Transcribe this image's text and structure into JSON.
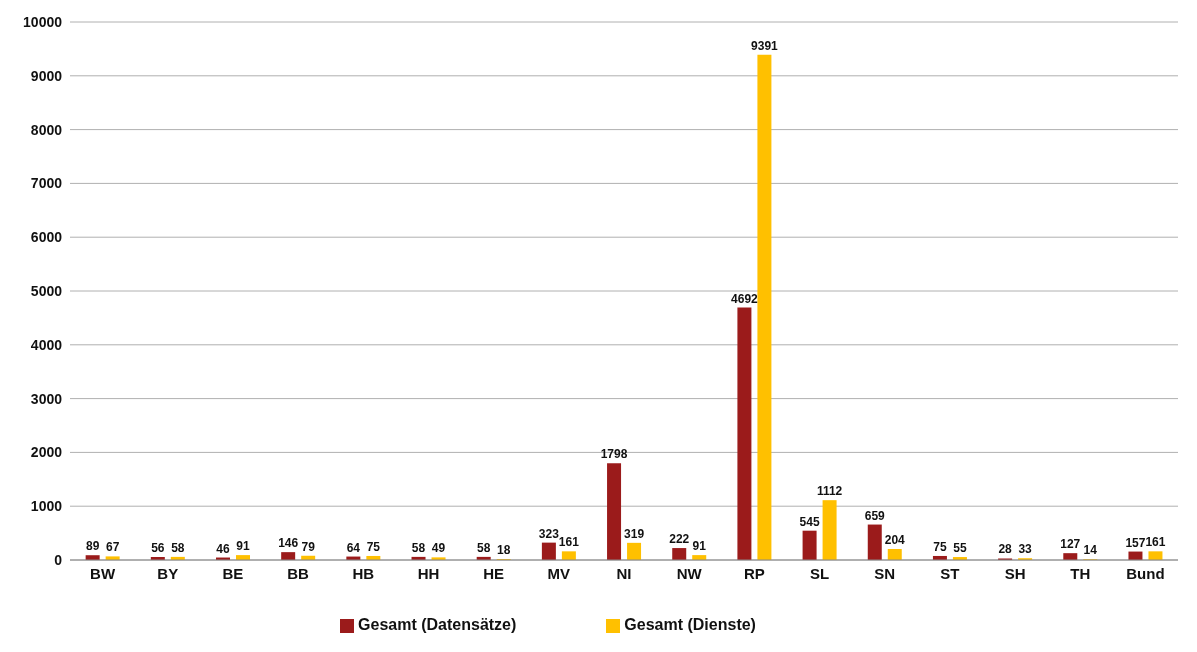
{
  "chart_data": {
    "type": "bar",
    "categories": [
      "BW",
      "BY",
      "BE",
      "BB",
      "HB",
      "HH",
      "HE",
      "MV",
      "NI",
      "NW",
      "RP",
      "SL",
      "SN",
      "ST",
      "SH",
      "TH",
      "Bund"
    ],
    "series": [
      {
        "name": "Gesamt (Datensätze)",
        "color": "#9b1b1b",
        "values": [
          89,
          56,
          46,
          146,
          64,
          58,
          58,
          323,
          1798,
          222,
          4692,
          545,
          659,
          75,
          28,
          127,
          157
        ]
      },
      {
        "name": "Gesamt (Dienste)",
        "color": "#ffc000",
        "values": [
          67,
          58,
          91,
          79,
          75,
          49,
          18,
          161,
          319,
          91,
          9391,
          1112,
          204,
          55,
          33,
          14,
          161
        ]
      }
    ],
    "ylim": [
      0,
      10000
    ],
    "yticks": [
      0,
      1000,
      2000,
      3000,
      4000,
      5000,
      6000,
      7000,
      8000,
      9000,
      10000
    ],
    "grid": "y",
    "legend": "bottom",
    "data_labels": true
  }
}
